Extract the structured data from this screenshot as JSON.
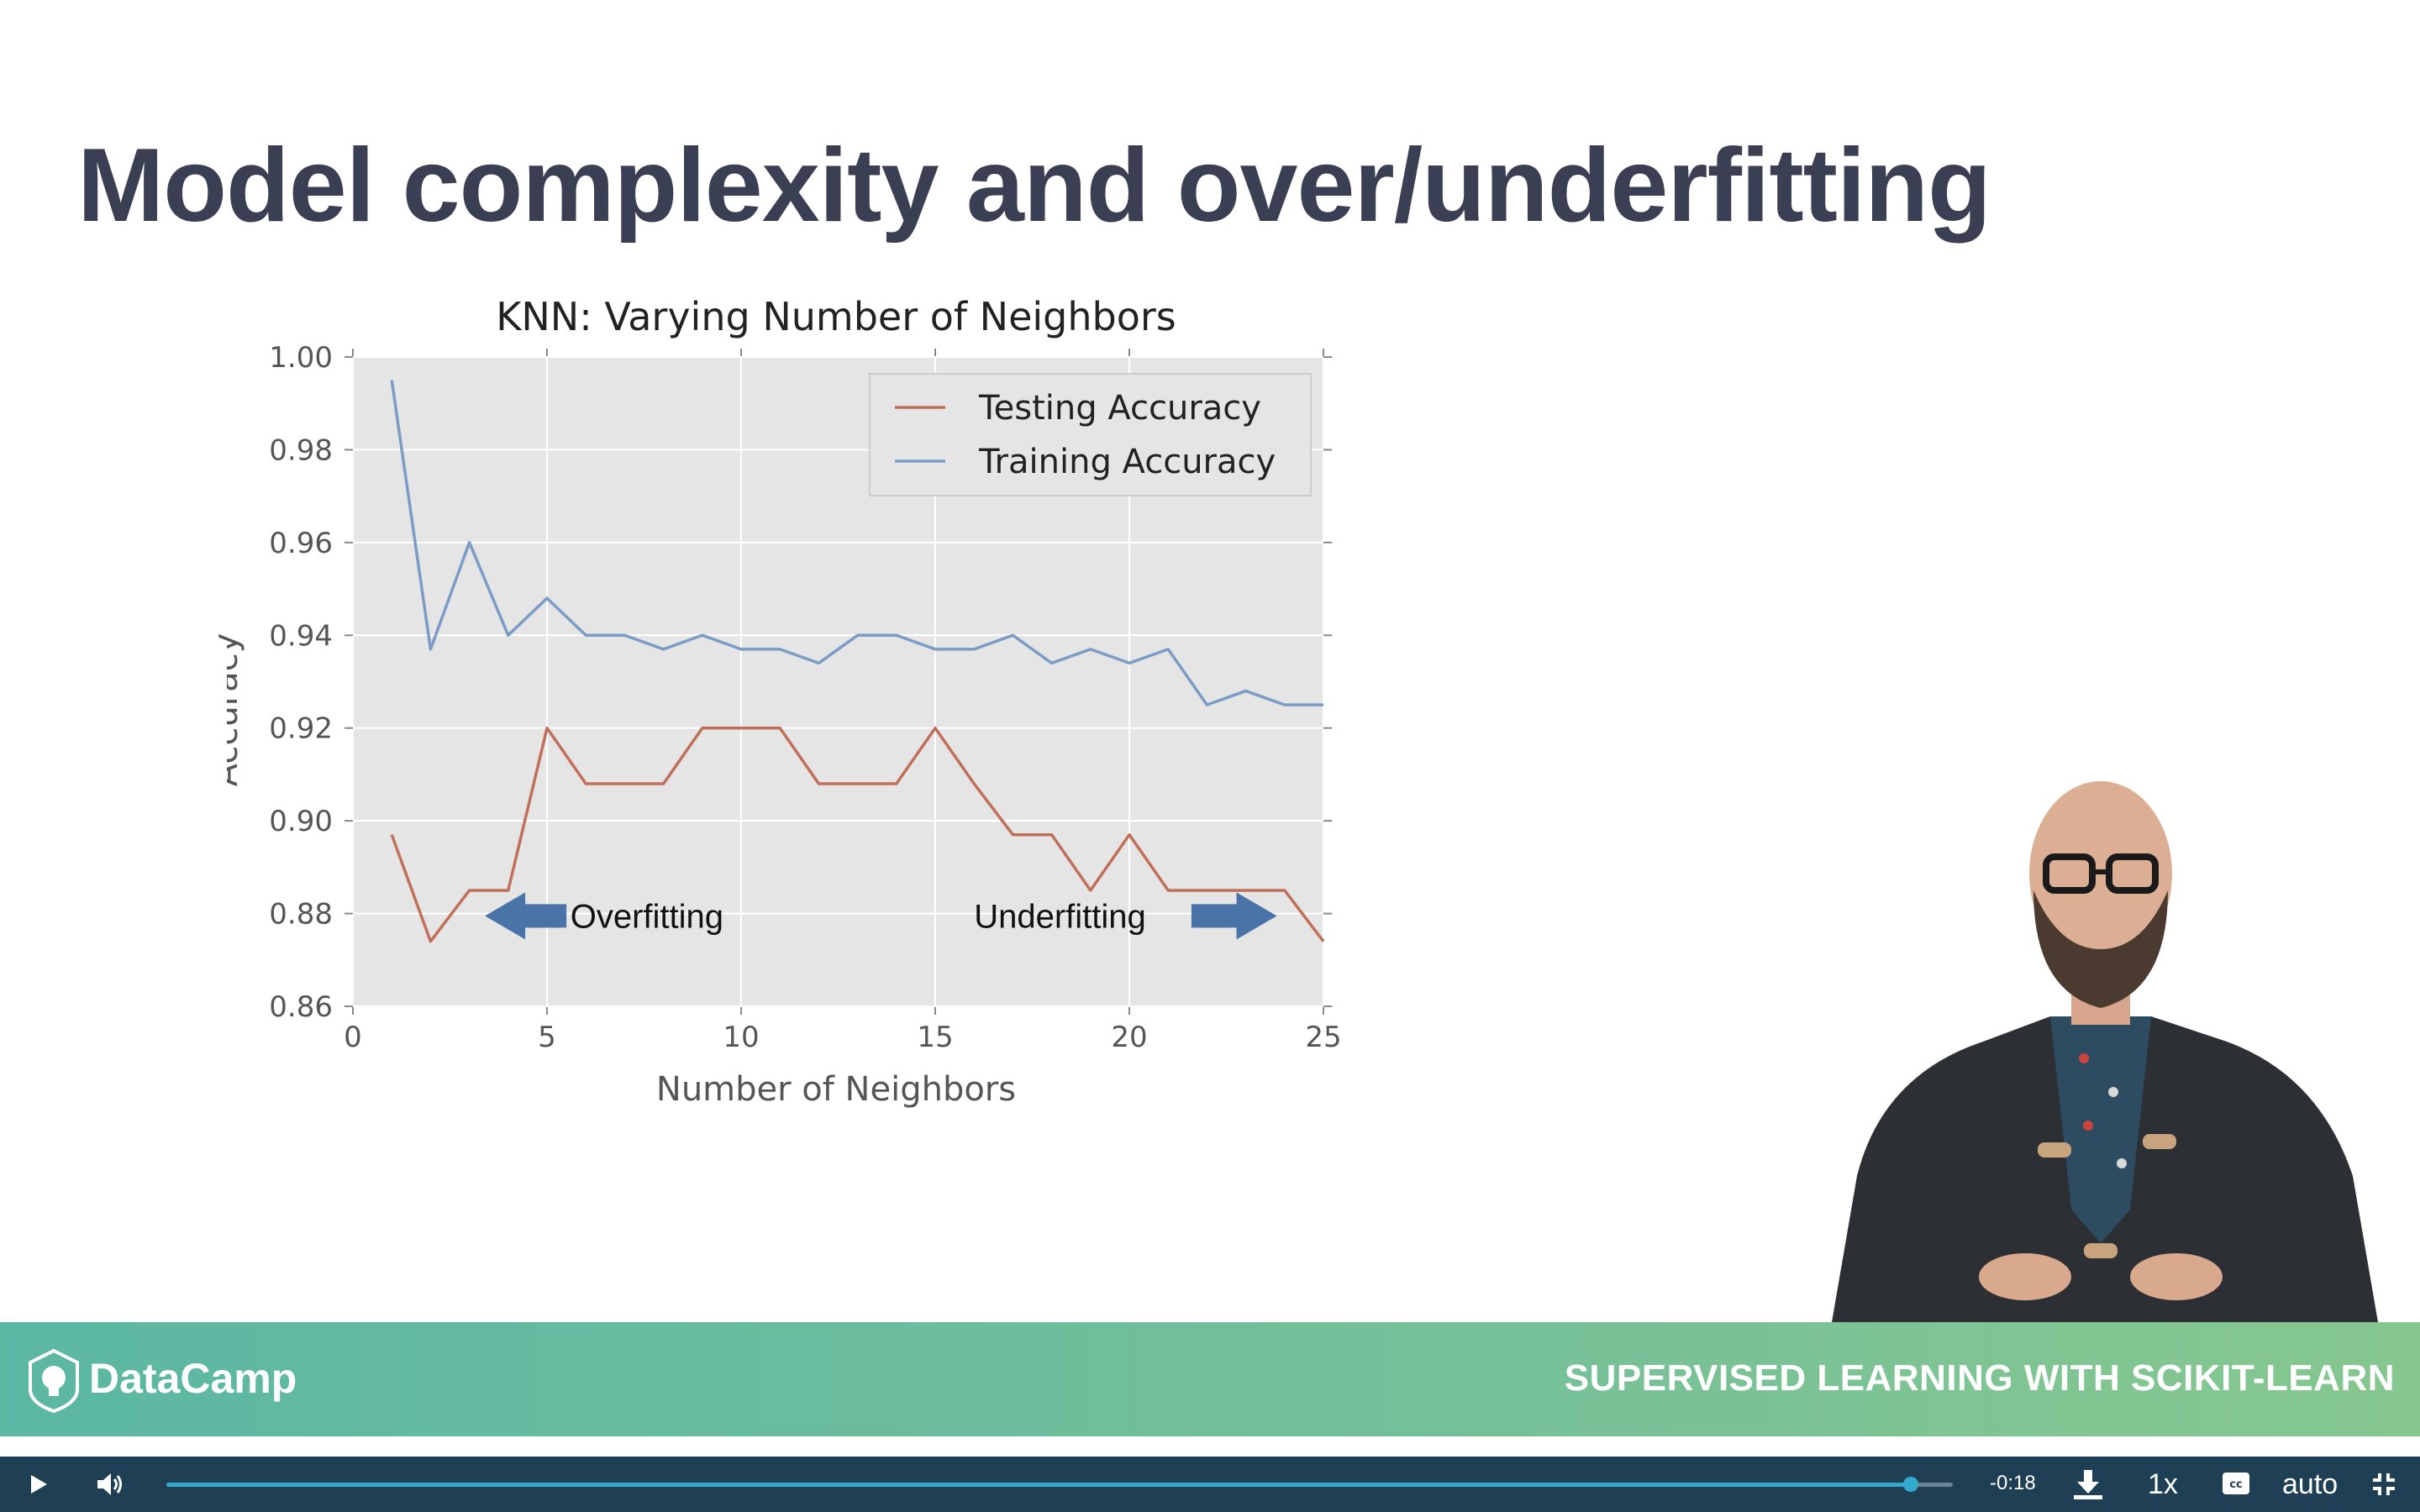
{
  "slide": {
    "title": "Model complexity and over/underfitting"
  },
  "chart_data": {
    "type": "line",
    "title": "KNN: Varying Number of Neighbors",
    "xlabel": "Number of Neighbors",
    "ylabel": "Accuracy",
    "xlim": [
      0,
      25
    ],
    "ylim": [
      0.86,
      1.0
    ],
    "xticks": [
      "0",
      "5",
      "10",
      "15",
      "20",
      "25"
    ],
    "yticks": [
      "0.86",
      "0.88",
      "0.90",
      "0.92",
      "0.94",
      "0.96",
      "0.98",
      "1.00"
    ],
    "grid": true,
    "legend_position": "top-right",
    "x": [
      1,
      2,
      3,
      4,
      5,
      6,
      7,
      8,
      9,
      10,
      11,
      12,
      13,
      14,
      15,
      16,
      17,
      18,
      19,
      20,
      21,
      22,
      23,
      24,
      25
    ],
    "series": [
      {
        "name": "Testing Accuracy",
        "color": "#c0705a",
        "values": [
          0.897,
          0.874,
          0.885,
          0.885,
          0.92,
          0.908,
          0.908,
          0.908,
          0.92,
          0.92,
          0.92,
          0.908,
          0.908,
          0.908,
          0.92,
          0.908,
          0.897,
          0.897,
          0.885,
          0.897,
          0.885,
          0.885,
          0.885,
          0.885,
          0.874
        ]
      },
      {
        "name": "Training Accuracy",
        "color": "#7b9cc4",
        "values": [
          0.995,
          0.937,
          0.96,
          0.94,
          0.948,
          0.94,
          0.94,
          0.937,
          0.94,
          0.937,
          0.937,
          0.934,
          0.94,
          0.94,
          0.937,
          0.937,
          0.94,
          0.934,
          0.937,
          0.934,
          0.937,
          0.925,
          0.928,
          0.925,
          0.925
        ]
      }
    ],
    "annotations": [
      {
        "text": "Overfitting",
        "x": 5.6,
        "y": 0.8795,
        "arrow": "left",
        "arrow_x": [
          3.4,
          5.5
        ]
      },
      {
        "text": "Underfitting",
        "x": 16,
        "y": 0.8795,
        "arrow": "right",
        "arrow_x": [
          21.6,
          23.8
        ]
      }
    ],
    "background": "#e5e5e5"
  },
  "footer": {
    "brand": "DataCamp",
    "course": "SUPERVISED LEARNING WITH SCIKIT-LEARN"
  },
  "player": {
    "time_remaining": "-0:18",
    "speed": "1x",
    "quality": "auto",
    "progress_fraction": 0.9765,
    "accent_color": "#33aacc",
    "icons": [
      "play-icon",
      "volume-icon",
      "download-icon",
      "captions-icon",
      "exit-fullscreen-icon"
    ]
  }
}
